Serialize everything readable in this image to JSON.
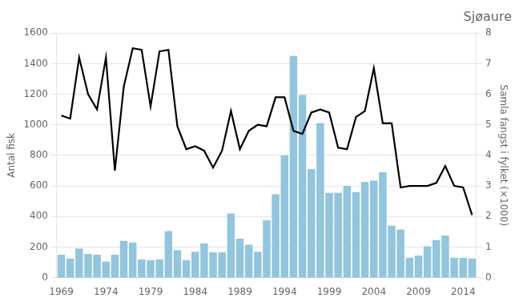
{
  "chart_data": {
    "type": "bar",
    "title": "Sjøaure",
    "x": [
      1969,
      1970,
      1971,
      1972,
      1973,
      1974,
      1975,
      1976,
      1977,
      1978,
      1979,
      1980,
      1981,
      1982,
      1983,
      1984,
      1985,
      1986,
      1987,
      1988,
      1989,
      1990,
      1991,
      1992,
      1993,
      1994,
      1995,
      1996,
      1997,
      1998,
      1999,
      2000,
      2001,
      2002,
      2003,
      2004,
      2005,
      2006,
      2007,
      2008,
      2009,
      2010,
      2011,
      2012,
      2013,
      2014,
      2015
    ],
    "xlim": [
      1968.5,
      2015.5
    ],
    "xticks": [
      1969,
      1974,
      1979,
      1984,
      1989,
      1994,
      1999,
      2004,
      2009,
      2014
    ],
    "ylabel": "Antal fisk",
    "ylim": [
      0,
      1600
    ],
    "yticks": [
      0,
      200,
      400,
      600,
      800,
      1000,
      1200,
      1400,
      1600
    ],
    "y2label": "Samla fangst i fylket (×1000)",
    "y2lim": [
      0,
      8
    ],
    "y2ticks": [
      0,
      1,
      2,
      3,
      4,
      5,
      6,
      7,
      8
    ],
    "grid": true,
    "series": [
      {
        "color": "#92c5de",
        "values": [
          150,
          125,
          190,
          155,
          150,
          105,
          150,
          240,
          230,
          120,
          115,
          120,
          305,
          180,
          115,
          170,
          225,
          165,
          165,
          420,
          255,
          215,
          170,
          375,
          545,
          800,
          1450,
          1195,
          710,
          1010,
          555,
          555,
          600,
          560,
          625,
          635,
          690,
          340,
          315,
          130,
          145,
          205,
          245,
          275,
          130,
          130,
          125
        ]
      },
      {
        "type": "line",
        "color": "#000000",
        "axis": "y2",
        "values": [
          5.3,
          5.2,
          7.2,
          6.0,
          5.5,
          7.2,
          3.5,
          6.25,
          7.5,
          7.45,
          5.6,
          7.4,
          7.45,
          4.95,
          4.2,
          4.3,
          4.15,
          3.6,
          4.15,
          5.45,
          4.2,
          4.8,
          5.0,
          4.95,
          5.9,
          5.9,
          4.8,
          4.7,
          5.4,
          5.5,
          5.4,
          4.25,
          4.2,
          5.25,
          5.45,
          6.85,
          5.05,
          5.05,
          2.95,
          3.0,
          3.0,
          3.0,
          3.1,
          3.65,
          3.0,
          2.95,
          2.05
        ]
      }
    ]
  }
}
